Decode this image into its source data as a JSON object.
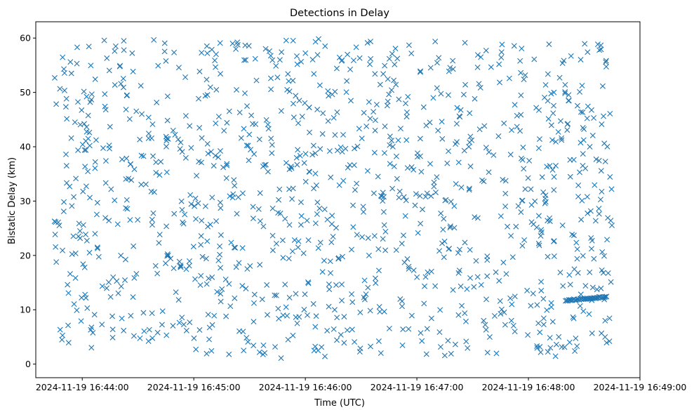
{
  "chart_data": {
    "type": "scatter",
    "title": "Detections in Delay",
    "xlabel": "Time (UTC)",
    "ylabel": "Bistatic Delay (km)",
    "x_unit": "time",
    "x_start": "2024-11-19 16:43:45",
    "x_end": "2024-11-19 16:48:45",
    "xlim": [
      "2024-11-19 16:43:35",
      "2024-11-19 16:49:00"
    ],
    "ylim": [
      -2.5,
      63
    ],
    "x_ticks": [
      "2024-11-19 16:44:00",
      "2024-11-19 16:45:00",
      "2024-11-19 16:46:00",
      "2024-11-19 16:47:00",
      "2024-11-19 16:48:00",
      "2024-11-19 16:49:00"
    ],
    "y_ticks": [
      0,
      10,
      20,
      30,
      40,
      50,
      60
    ],
    "marker": "x",
    "color": "#1f77b4",
    "grid": false,
    "legend": "none",
    "series": [
      {
        "random_points": {
          "count": 1150,
          "y_range": [
            1,
            60
          ],
          "seed": 20241119
        },
        "track_points": {
          "count": 40,
          "x_start": "2024-11-19 16:48:20",
          "x_end": "2024-11-19 16:48:42",
          "y_start": 11.7,
          "y_end": 12.4
        }
      }
    ]
  }
}
